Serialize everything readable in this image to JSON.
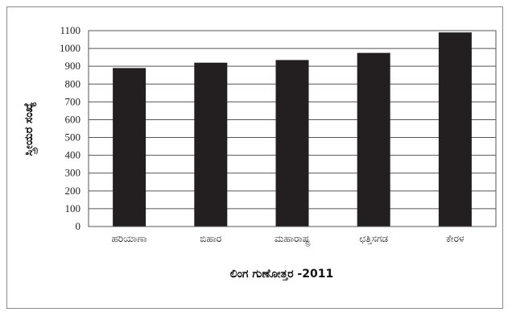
{
  "chart_data": {
    "type": "bar",
    "categories": [
      "ಹರಿಯಾಣಾ",
      "ಬಿಹಾರ",
      "ಮಹಾರಾಷ್ಟ್ರ",
      "ಛತ್ತಿಸಗಡ",
      "ಕೇರಳ"
    ],
    "values": [
      890,
      920,
      935,
      975,
      1090
    ],
    "xlabel": "ಲಿಂಗ ಗುಣೋತ್ತರ -2011",
    "ylabel": "ಸ್ತ್ರೀಯರ ಸಂಖ್ಯೆ",
    "ylim": [
      0,
      1100
    ],
    "yticks": [
      0,
      100,
      200,
      300,
      400,
      500,
      600,
      700,
      800,
      900,
      1000,
      1100
    ],
    "grid": true,
    "bar_color": "#231f20",
    "grid_color": "#555555"
  }
}
